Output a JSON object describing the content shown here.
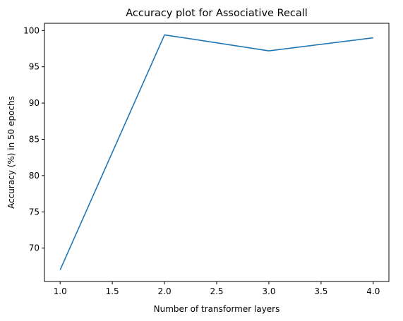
{
  "chart_data": {
    "type": "line",
    "title": "Accuracy plot for Associative Recall",
    "xlabel": "Number of transformer layers",
    "ylabel": "Accuracy (%) in 50 epochs",
    "x": [
      1.0,
      2.0,
      3.0,
      4.0
    ],
    "series": [
      {
        "values": [
          67.0,
          99.4,
          97.2,
          99.0
        ]
      }
    ],
    "xlim": [
      0.85,
      4.15
    ],
    "ylim": [
      65.4,
      101.0
    ],
    "xticks": [
      "1.0",
      "1.5",
      "2.0",
      "2.5",
      "3.0",
      "3.5",
      "4.0"
    ],
    "yticks": [
      "70",
      "75",
      "80",
      "85",
      "90",
      "95",
      "100"
    ],
    "grid": false,
    "line_color": "#1f77b4"
  }
}
